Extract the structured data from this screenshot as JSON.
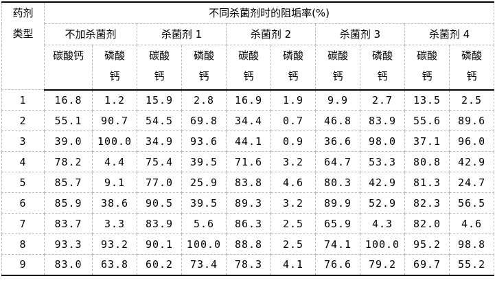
{
  "table": {
    "corner": {
      "l1": "药剂",
      "l2": "类型"
    },
    "main_header": "不同杀菌剂时的阻垢率(%)",
    "groups": [
      "不加杀菌剂",
      "杀菌剂 1",
      "杀菌剂 2",
      "杀菌剂 3",
      "杀菌剂 4"
    ],
    "sub_headers": [
      {
        "l1": "碳酸钙",
        "l2": ""
      },
      {
        "l1": "磷酸",
        "l2": "钙"
      },
      {
        "l1": "碳酸",
        "l2": "钙"
      },
      {
        "l1": "磷酸",
        "l2": "钙"
      },
      {
        "l1": "碳酸",
        "l2": "钙"
      },
      {
        "l1": "磷酸",
        "l2": "钙"
      },
      {
        "l1": "碳酸",
        "l2": "钙"
      },
      {
        "l1": "磷酸",
        "l2": "钙"
      },
      {
        "l1": "碳酸",
        "l2": "钙"
      },
      {
        "l1": "磷酸",
        "l2": "钙"
      }
    ],
    "rows": [
      {
        "label": "1",
        "values": [
          "16.8",
          "1.2",
          "15.9",
          "2.8",
          "16.9",
          "1.9",
          "9.9",
          "2.7",
          "13.5",
          "2.5"
        ]
      },
      {
        "label": "2",
        "values": [
          "55.1",
          "90.7",
          "54.5",
          "69.8",
          "34.4",
          "0.7",
          "46.8",
          "83.9",
          "55.6",
          "89.6"
        ]
      },
      {
        "label": "3",
        "values": [
          "39.0",
          "100.0",
          "34.9",
          "93.6",
          "44.1",
          "0.9",
          "36.6",
          "98.0",
          "37.1",
          "96.0"
        ]
      },
      {
        "label": "4",
        "values": [
          "78.2",
          "4.4",
          "75.4",
          "39.5",
          "71.6",
          "3.2",
          "64.7",
          "53.3",
          "80.8",
          "42.9"
        ]
      },
      {
        "label": "5",
        "values": [
          "85.7",
          "9.1",
          "77.0",
          "25.9",
          "83.8",
          "4.6",
          "80.3",
          "42.9",
          "81.3",
          "24.7"
        ]
      },
      {
        "label": "6",
        "values": [
          "85.9",
          "38.6",
          "90.5",
          "39.5",
          "89.3",
          "3.2",
          "89.9",
          "52.9",
          "82.3",
          "56.5"
        ]
      },
      {
        "label": "7",
        "values": [
          "83.7",
          "3.3",
          "83.9",
          "5.6",
          "86.3",
          "2.5",
          "65.9",
          "4.3",
          "82.0",
          "4.6"
        ]
      },
      {
        "label": "8",
        "values": [
          "93.3",
          "93.2",
          "90.1",
          "100.0",
          "88.8",
          "2.5",
          "74.1",
          "100.0",
          "95.2",
          "98.8"
        ]
      },
      {
        "label": "9",
        "values": [
          "83.0",
          "63.8",
          "60.2",
          "73.4",
          "78.3",
          "4.1",
          "76.6",
          "79.2",
          "69.7",
          "55.2"
        ]
      }
    ]
  },
  "colors": {
    "rule_solid": "#000000",
    "rule_dashed": "#b8b8b8",
    "background": "#ffffff",
    "text": "#000000"
  }
}
